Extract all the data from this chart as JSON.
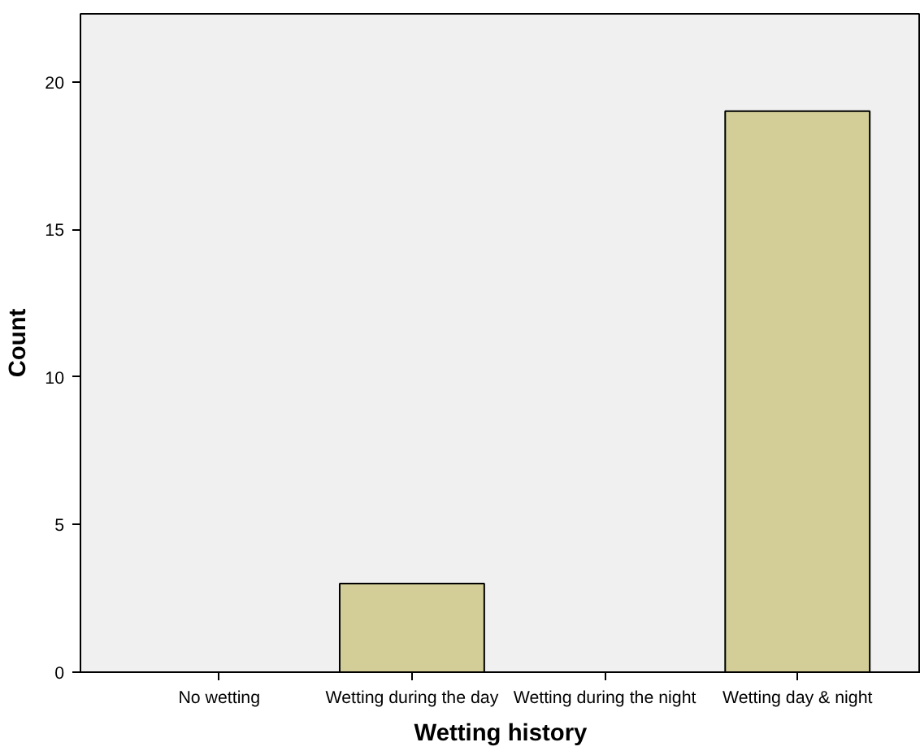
{
  "chart_data": {
    "type": "bar",
    "xlabel": "Wetting history",
    "ylabel": "Count",
    "categories": [
      "No wetting",
      "Wetting during the day",
      "Wetting during the night",
      "Wetting day & night"
    ],
    "values": [
      0,
      3,
      0,
      19
    ],
    "color": "#d3ce97",
    "ylim": [
      0,
      22.3
    ],
    "yticks": [
      0,
      5,
      10,
      15,
      20
    ],
    "grid": false
  }
}
